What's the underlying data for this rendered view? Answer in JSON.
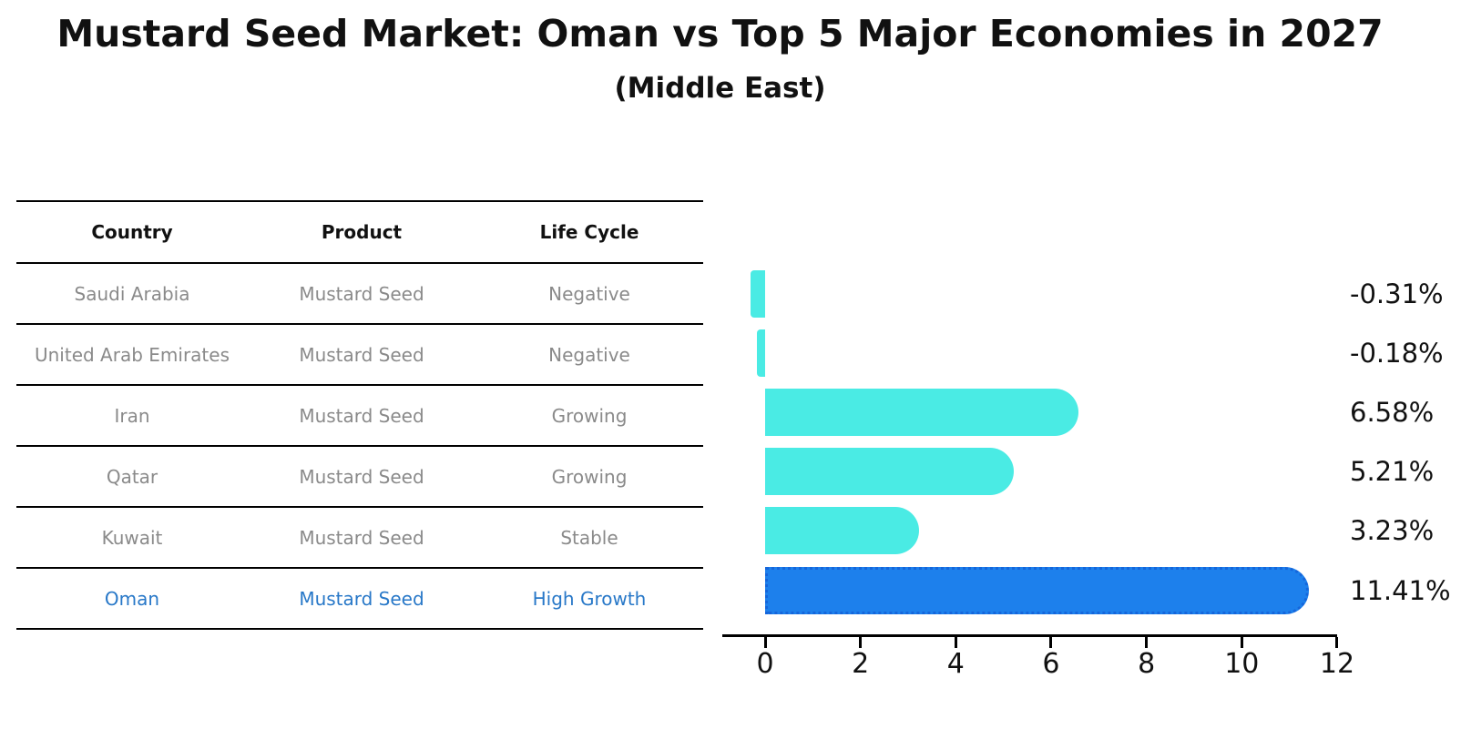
{
  "title": "Mustard Seed Market: Oman vs Top 5 Major Economies in 2027",
  "subtitle": "(Middle East)",
  "table": {
    "columns": [
      "Country",
      "Product",
      "Life Cycle"
    ],
    "rows": [
      {
        "country": "Saudi Arabia",
        "product": "Mustard Seed",
        "life_cycle": "Negative",
        "highlight": false
      },
      {
        "country": "United Arab Emirates",
        "product": "Mustard Seed",
        "life_cycle": "Negative",
        "highlight": false
      },
      {
        "country": "Iran",
        "product": "Mustard Seed",
        "life_cycle": "Growing",
        "highlight": false
      },
      {
        "country": "Qatar",
        "product": "Mustard Seed",
        "life_cycle": "Growing",
        "highlight": false
      },
      {
        "country": "Kuwait",
        "product": "Mustard Seed",
        "life_cycle": "Stable",
        "highlight": false
      },
      {
        "country": "Oman",
        "product": "Mustard Seed",
        "life_cycle": "High Growth",
        "highlight": true
      }
    ]
  },
  "chart_data": {
    "type": "bar",
    "orientation": "horizontal",
    "categories": [
      "Saudi Arabia",
      "United Arab Emirates",
      "Iran",
      "Qatar",
      "Kuwait",
      "Oman"
    ],
    "values": [
      -0.31,
      -0.18,
      6.58,
      5.21,
      3.23,
      11.41
    ],
    "value_labels": [
      "-0.31%",
      "-0.18%",
      "6.58%",
      "5.21%",
      "3.23%",
      "11.41%"
    ],
    "x_ticks": [
      0,
      2,
      4,
      6,
      8,
      10,
      12
    ],
    "xlim": [
      -0.9,
      12.0
    ],
    "highlight_index": 5,
    "grid": false,
    "legend": false,
    "xlabel": "",
    "ylabel": ""
  },
  "colors": {
    "bar": "#4AEBE4",
    "highlight_bar": "#1D80EC",
    "highlight_border": "#1566DB",
    "highlight_text": "#2878C8",
    "table_text": "#8a8a8a",
    "axis": "#000000",
    "text": "#111111"
  }
}
